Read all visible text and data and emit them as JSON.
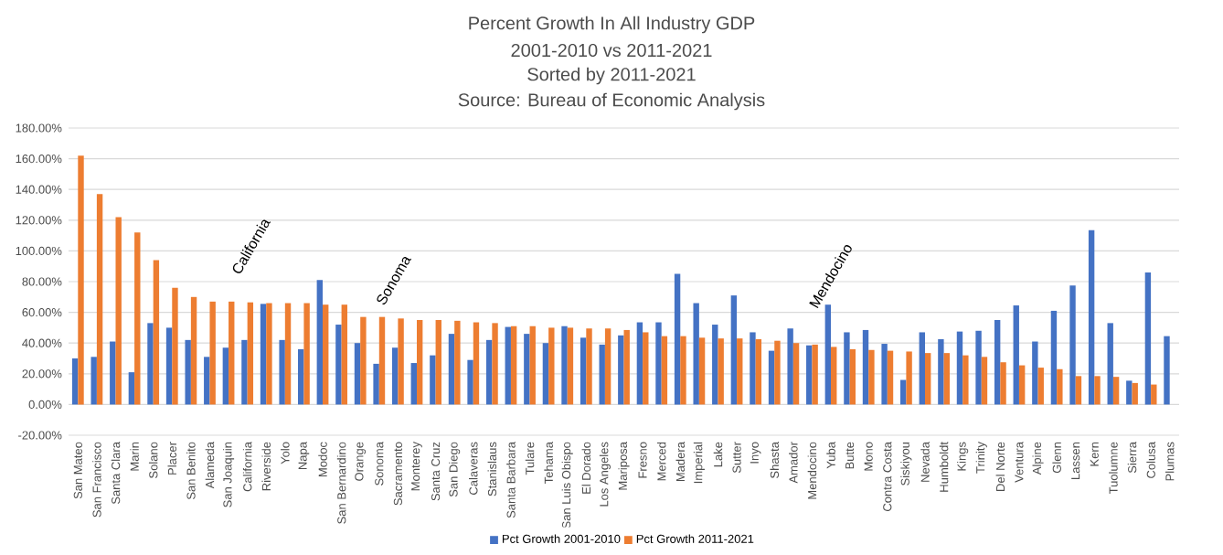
{
  "chart_data": {
    "type": "bar",
    "title": "Percent Growth In All Industry GDP",
    "subtitle": "2001-2010 vs 2011-2021",
    "categories": [
      "San Mateo",
      "San Francisco",
      "Santa Clara",
      "Marin",
      "Solano",
      "Placer",
      "San Benito",
      "Alameda",
      "San Joaquin",
      "California",
      "Riverside",
      "Yolo",
      "Napa",
      "Modoc",
      "San Bernardino",
      "Orange",
      "Sonoma",
      "Sacramento",
      "Monterey",
      "Santa Cruz",
      "San Diego",
      "Calaveras",
      "Stanislaus",
      "Santa Barbara",
      "Tulare",
      "Tehama",
      "San Luis Obispo",
      "El Dorado",
      "Los Angeles",
      "Mariposa",
      "Fresno",
      "Merced",
      "Madera",
      "Imperial",
      "Lake",
      "Sutter",
      "Inyo",
      "Shasta",
      "Amador",
      "Mendocino",
      "Yuba",
      "Butte",
      "Mono",
      "Contra Costa",
      "Siskiyou",
      "Nevada",
      "Humboldt",
      "Kings",
      "Trinity",
      "Del Norte",
      "Ventura",
      "Alpine",
      "Glenn",
      "Lassen",
      "Kern",
      "Tuolumne",
      "Sierra",
      "Colusa",
      "Plumas"
    ],
    "series": [
      {
        "name": "Pct Growth 2001-2010",
        "color": "#4472c4",
        "values": [
          30,
          31,
          41,
          21,
          53,
          50,
          42,
          31,
          37,
          42,
          65.5,
          42,
          36,
          81,
          52,
          40,
          26.5,
          37,
          27,
          32,
          46,
          29,
          42,
          50.5,
          46,
          40,
          51,
          43.5,
          39,
          45,
          53.5,
          53.5,
          85,
          66,
          52,
          71,
          47,
          35,
          49.5,
          38.5,
          65,
          47,
          48.5,
          39.5,
          16,
          47,
          42.5,
          47.5,
          48,
          55,
          64.5,
          41,
          61,
          77.5,
          113.5,
          53,
          15.5,
          86,
          44.5
        ]
      },
      {
        "name": "Pct Growth 2011-2021",
        "color": "#ed7d31",
        "values": [
          162,
          137,
          122,
          112,
          94,
          76,
          70,
          67,
          67,
          66.5,
          66,
          66,
          66,
          65,
          65,
          57,
          57,
          56,
          55,
          55,
          54.5,
          53.5,
          53,
          51,
          51,
          50,
          50,
          49.5,
          49.5,
          48.5,
          47,
          44.5,
          44.5,
          43.5,
          43,
          43,
          42.5,
          41.5,
          40,
          39,
          37.5,
          36,
          35.5,
          35,
          34.5,
          33.5,
          33.5,
          32,
          31,
          27.5,
          25.5,
          24,
          23,
          18.5,
          18.5,
          18,
          14,
          13,
          null
        ]
      }
    ],
    "ylim": [
      -20,
      180
    ],
    "yticks": [
      {
        "value": -20,
        "label": "-20.00%"
      },
      {
        "value": 0,
        "label": "0.00%"
      },
      {
        "value": 20,
        "label": "20.00%"
      },
      {
        "value": 40,
        "label": "40.00%"
      },
      {
        "value": 60,
        "label": "60.00%"
      },
      {
        "value": 80,
        "label": "80.00%"
      },
      {
        "value": 100,
        "label": "100.00%"
      },
      {
        "value": 120,
        "label": "120.00%"
      },
      {
        "value": 140,
        "label": "140.00%"
      },
      {
        "value": 160,
        "label": "160.00%"
      },
      {
        "value": 180,
        "label": "180.00%"
      }
    ],
    "grid": "y",
    "legend": "bottom",
    "annotations": [
      "Sorted by 2011-2021",
      "Source: Bureau of Economic Analysis",
      "California",
      "Sonoma",
      "Mendocino"
    ]
  }
}
